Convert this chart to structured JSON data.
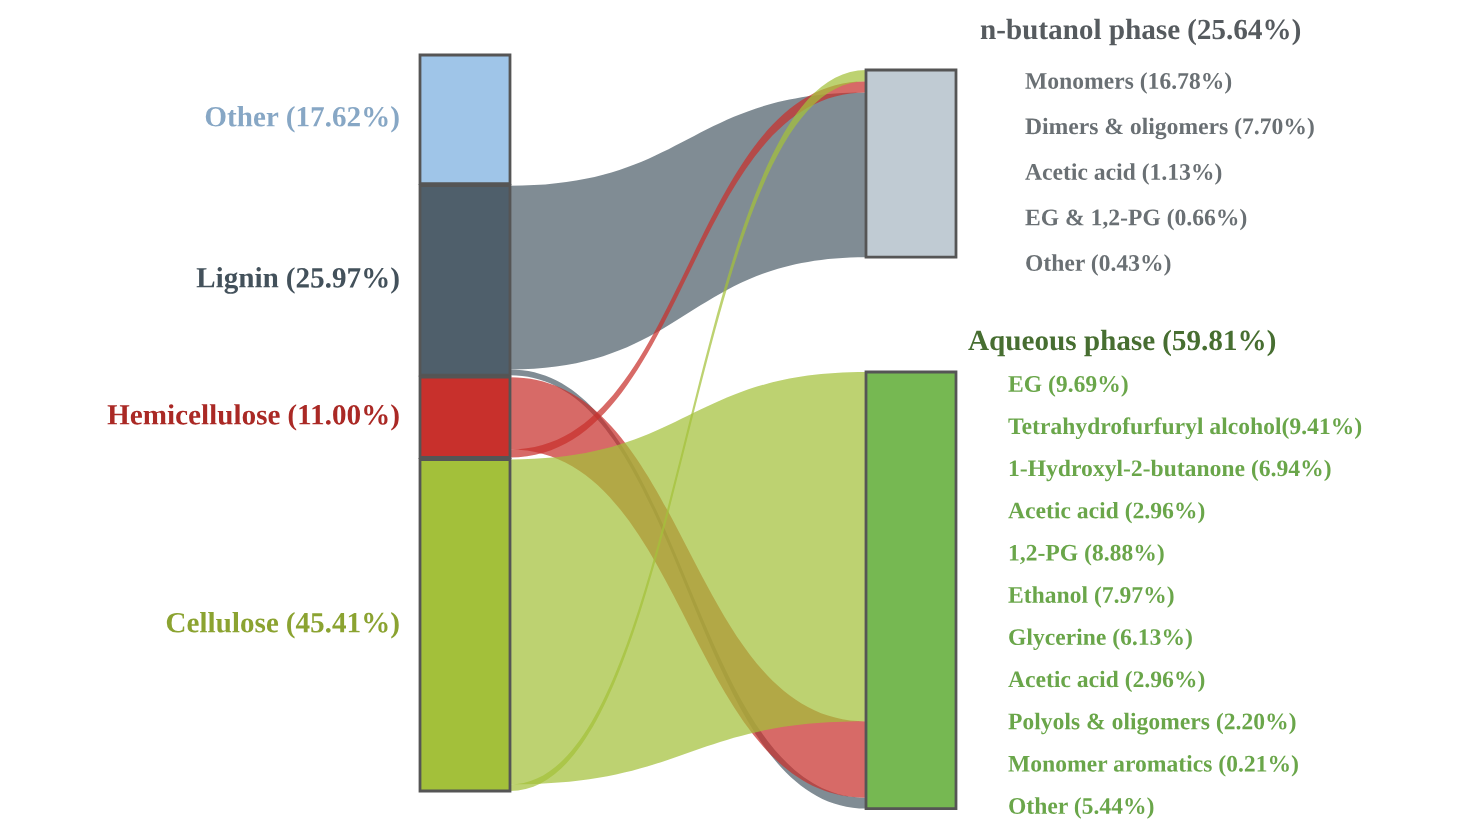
{
  "chart_data": {
    "type": "other",
    "categories": [
      "Other",
      "Lignin",
      "Hemicellulose",
      "Cellulose",
      "n-butanol phase",
      "Aqueous phase"
    ],
    "values": [
      17.62,
      25.97,
      11.0,
      45.41,
      25.64,
      59.81
    ],
    "value_labels": [
      "(17.62%)",
      "(25.97%)",
      "(11.00%)",
      "(45.41%)",
      "(25.64%)",
      "(59.81%)"
    ],
    "colors": [
      "#9fc5e8",
      "#4f5f6b",
      "#c8302c",
      "#a3c03a",
      "#c0cbd3",
      "#76b852"
    ],
    "y_categories": [
      "Monomers (16.78%)",
      "Dimers & oligomers (7.70%)",
      "Acetic acid (1.13%)",
      "EG & 1,2-PG (0.66%)",
      "Other (0.43%)"
    ],
    "y2_categories": [
      "EG (9.69%)",
      "Tetrahydrofurfuryl alcohol(9.41%)",
      "1-Hydroxyl-2-butanone (6.94%)",
      "Acetic acid (2.96%)",
      "1,2-PG (8.88%)",
      "Ethanol (7.97%)",
      "Glycerine (6.13%)",
      "Acetic acid (2.96%)",
      "Polyols & oligomers (2.20%)",
      "Monomer aromatics (0.21%)",
      "Other (5.44%)"
    ]
  }
}
